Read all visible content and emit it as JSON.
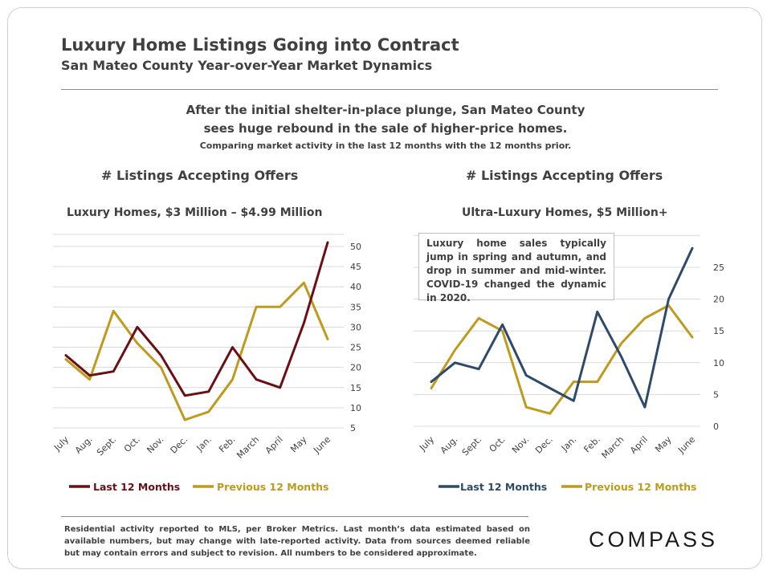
{
  "header": {
    "title": "Luxury Home Listings Going into Contract",
    "subtitle": "San Mateo County Year-over-Year Market Dynamics"
  },
  "headline": {
    "line1": "After the initial shelter-in-place plunge, San Mateo County",
    "line2": "sees huge rebound in the sale of higher-price homes.",
    "note": "Comparing market activity in the last 12 months with the 12 months prior."
  },
  "annotation": "Luxury home sales typically jump in spring and autumn, and drop in summer and mid-winter. COVID-19 changed the dynamic in 2020.",
  "footer": "Residential activity reported to MLS, per Broker Metrics. Last month’s data estimated based on available numbers, but may change with late-reported activity. Data from sources deemed reliable but may contain errors and subject to revision. All numbers to be considered approximate.",
  "logo": "COMPASS",
  "chart_data": [
    {
      "type": "line",
      "title": "# Listings Accepting Offers",
      "subtitle": "Luxury Homes, $3 Million – $4.99 Million",
      "categories": [
        "July",
        "Aug.",
        "Sept.",
        "Oct.",
        "Nov.",
        "Dec.",
        "Jan.",
        "Feb.",
        "March",
        "April",
        "May",
        "June"
      ],
      "series": [
        {
          "name": "Last 12 Months",
          "color": "#6b0f14",
          "values": [
            23,
            18,
            19,
            30,
            23,
            13,
            14,
            25,
            17,
            15,
            31,
            51
          ]
        },
        {
          "name": "Previous 12 Months",
          "color": "#bf9a1c",
          "values": [
            22,
            17,
            34,
            26,
            20,
            7,
            9,
            17,
            35,
            35,
            41,
            27
          ]
        }
      ],
      "yticks": [
        5,
        10,
        15,
        20,
        25,
        30,
        35,
        40,
        45,
        50
      ],
      "ylim": [
        5,
        53
      ],
      "grid": true,
      "legend": "bottom"
    },
    {
      "type": "line",
      "title": "# Listings Accepting Offers",
      "subtitle": "Ultra-Luxury Homes, $5 Million+",
      "categories": [
        "July",
        "Aug.",
        "Sept.",
        "Oct.",
        "Nov.",
        "Dec.",
        "Jan.",
        "Feb.",
        "March",
        "April",
        "May",
        "June"
      ],
      "series": [
        {
          "name": "Last 12 Months",
          "color": "#2e4a6b",
          "values": [
            7,
            10,
            9,
            16,
            8,
            6,
            4,
            18,
            11,
            3,
            20,
            28
          ]
        },
        {
          "name": "Previous 12 Months",
          "color": "#bf9a1c",
          "values": [
            6,
            12,
            17,
            15,
            3,
            2,
            7,
            7,
            13,
            17,
            19,
            14
          ]
        }
      ],
      "yticks": [
        0,
        5,
        10,
        15,
        20,
        25
      ],
      "ylim": [
        0,
        30
      ],
      "grid": true,
      "legend": "bottom"
    }
  ]
}
